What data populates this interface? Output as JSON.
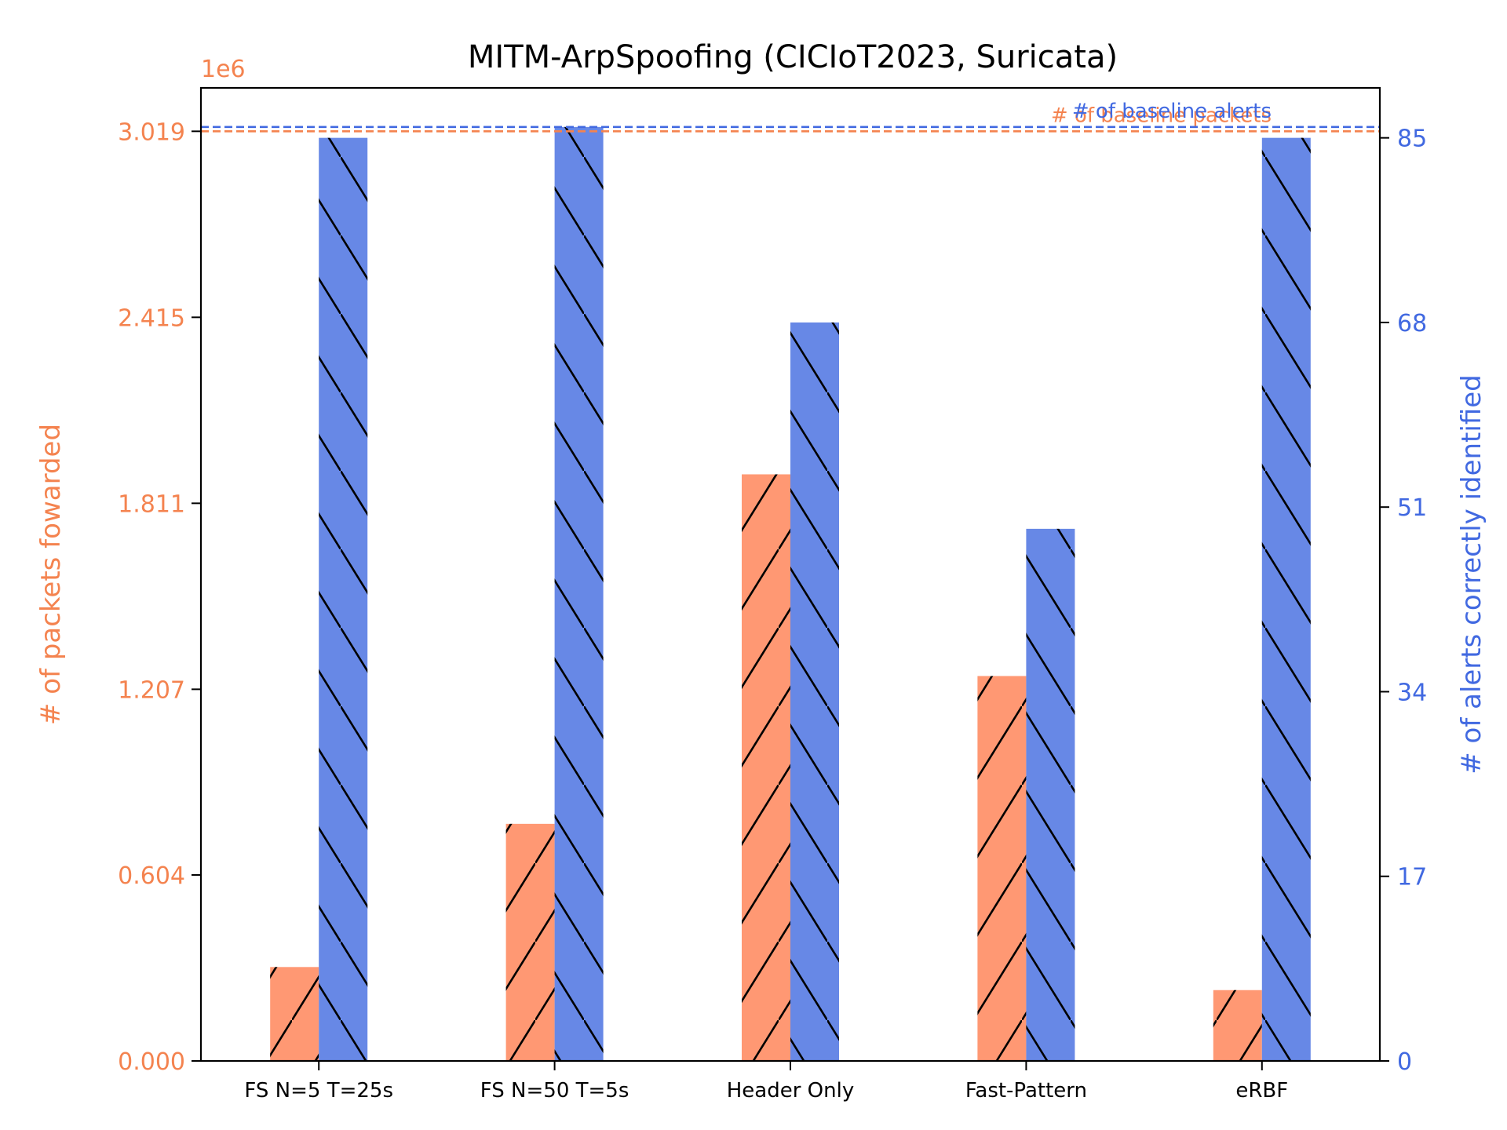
{
  "chart_data": {
    "type": "bar",
    "title": "MITM-ArpSpoofing (CICIoT2023, Suricata)",
    "categories": [
      "FS N=5 T=25s",
      "FS N=50 T=5s",
      "Header Only",
      "Fast-Pattern",
      "eRBF"
    ],
    "left_axis": {
      "label": "# of packets fowarded",
      "multiplier": "1e6",
      "ticks": [
        "0.000",
        "0.604",
        "1.207",
        "1.811",
        "2.415",
        "3.019"
      ],
      "tick_values": [
        0,
        0.604,
        1.207,
        1.811,
        2.415,
        3.019
      ],
      "ylim": [
        0,
        3.16
      ]
    },
    "right_axis": {
      "label": "# of alerts correctly identified",
      "ticks": [
        "0",
        "17",
        "34",
        "51",
        "68",
        "85"
      ],
      "tick_values": [
        0,
        17,
        34,
        51,
        68,
        85
      ],
      "ylim": [
        0,
        89.6
      ]
    },
    "series": [
      {
        "axis": "left",
        "values": [
          0.305,
          0.77,
          1.905,
          1.25,
          0.23
        ]
      },
      {
        "axis": "right",
        "values": [
          85,
          86,
          68,
          49,
          85
        ]
      }
    ],
    "reference_lines": [
      {
        "label": "# of baseline packets",
        "axis": "left",
        "value": 3.019
      },
      {
        "label": "# of baseline alerts",
        "axis": "right",
        "value": 86
      }
    ],
    "colors": {
      "packets": "#FF9873",
      "alerts": "#6788E6",
      "packets_axis": "#F4834F",
      "alerts_axis": "#4169E1",
      "hatch": "#000000"
    }
  }
}
